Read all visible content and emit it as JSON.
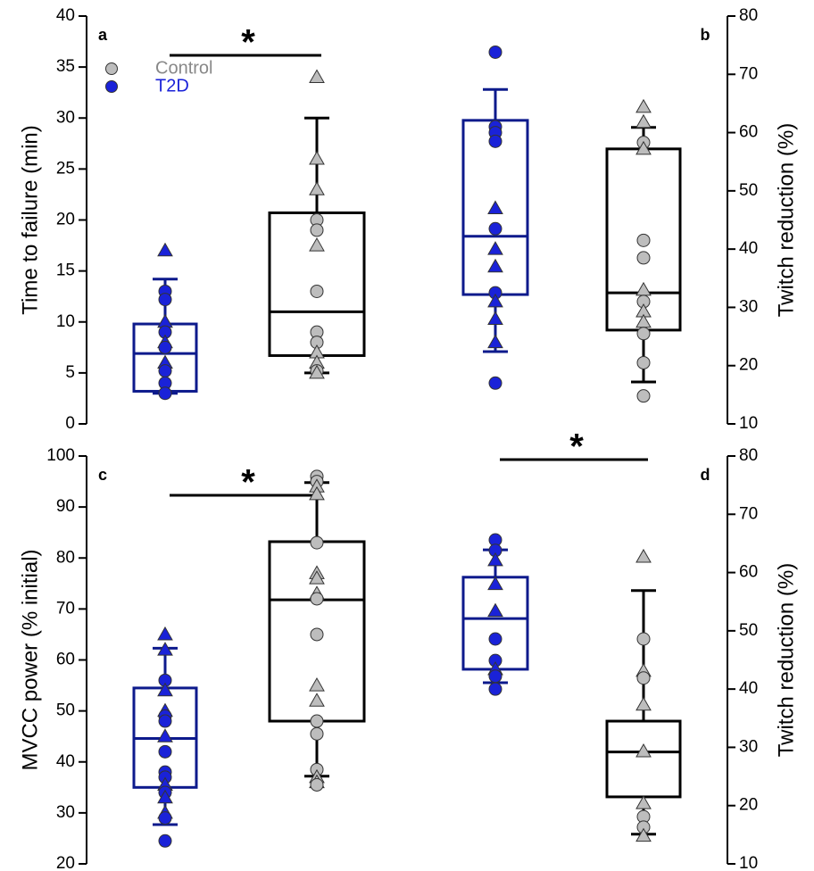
{
  "chart_data": [
    {
      "type": "box",
      "label": "a",
      "axis_side": "left",
      "ylabel": "Time to failure (min)",
      "ylim": [
        0,
        40
      ],
      "yticks": [
        0,
        5,
        10,
        15,
        20,
        25,
        30,
        35,
        40
      ],
      "significance": "*",
      "legend": true,
      "groups": [
        {
          "name": "T2D",
          "color": "#1a22d8",
          "box_color": "#0d1a8c",
          "whisker_low": 3.0,
          "q1": 3.2,
          "median": 6.9,
          "q3": 9.8,
          "whisker_high": 14.2,
          "points": [
            17,
            13,
            12.2,
            10,
            9,
            8,
            7.5,
            6,
            5.2,
            4,
            3
          ],
          "markers": [
            "triangle",
            "circle",
            "circle",
            "triangle",
            "circle",
            "triangle",
            "circle",
            "triangle",
            "circle",
            "circle",
            "circle"
          ]
        },
        {
          "name": "Control",
          "color": "#bdbdbd",
          "box_color": "#000000",
          "whisker_low": 5.0,
          "q1": 6.7,
          "median": 11,
          "q3": 20.7,
          "whisker_high": 30,
          "points": [
            34,
            26,
            23,
            20,
            19,
            17.5,
            13,
            9,
            8,
            7,
            6,
            5.2,
            5
          ],
          "markers": [
            "triangle",
            "triangle",
            "triangle",
            "circle",
            "circle",
            "triangle",
            "circle",
            "circle",
            "circle",
            "triangle",
            "triangle",
            "circle",
            "triangle"
          ]
        }
      ]
    },
    {
      "type": "box",
      "label": "b",
      "axis_side": "right",
      "ylabel": "Twitch reduction (%)",
      "ylim": [
        10,
        80
      ],
      "yticks": [
        10,
        20,
        30,
        40,
        50,
        60,
        70,
        80
      ],
      "groups": [
        {
          "name": "T2D",
          "color": "#1a22d8",
          "box_color": "#0d1a8c",
          "whisker_low": 22.4,
          "q1": 32.2,
          "median": 42.2,
          "q3": 62.1,
          "whisker_high": 67.4,
          "points": [
            73.8,
            61,
            60,
            58.5,
            47,
            43.5,
            40,
            37,
            32.5,
            31,
            28,
            24,
            17
          ],
          "markers": [
            "circle",
            "circle",
            "circle",
            "circle",
            "triangle",
            "circle",
            "triangle",
            "triangle",
            "circle",
            "triangle",
            "triangle",
            "triangle",
            "circle"
          ]
        },
        {
          "name": "Control",
          "color": "#bdbdbd",
          "box_color": "#000000",
          "whisker_low": 17.2,
          "q1": 26.1,
          "median": 32.5,
          "q3": 57.2,
          "whisker_high": 60.9,
          "points": [
            64.4,
            61.8,
            58.3,
            57.2,
            41.5,
            38.5,
            33,
            31,
            29.3,
            27.5,
            25.5,
            20.5,
            14.8
          ],
          "markers": [
            "triangle",
            "triangle",
            "circle",
            "triangle",
            "circle",
            "circle",
            "triangle",
            "circle",
            "triangle",
            "triangle",
            "circle",
            "circle",
            "circle"
          ]
        }
      ]
    },
    {
      "type": "box",
      "label": "c",
      "axis_side": "left",
      "ylabel": "MVCC power (% initial)",
      "ylim": [
        20,
        100
      ],
      "yticks": [
        20,
        30,
        40,
        50,
        60,
        70,
        80,
        90,
        100
      ],
      "significance": "*",
      "groups": [
        {
          "name": "T2D",
          "color": "#1a22d8",
          "box_color": "#0d1a8c",
          "whisker_low": 27.7,
          "q1": 35,
          "median": 44.6,
          "q3": 54.5,
          "whisker_high": 62.3,
          "points": [
            65,
            62,
            56,
            54,
            50,
            49,
            48,
            45,
            42,
            38,
            37,
            35.5,
            34,
            33,
            30,
            29,
            24.5
          ],
          "markers": [
            "triangle",
            "triangle",
            "circle",
            "triangle",
            "triangle",
            "circle",
            "circle",
            "triangle",
            "circle",
            "circle",
            "circle",
            "triangle",
            "circle",
            "triangle",
            "triangle",
            "circle",
            "circle"
          ]
        },
        {
          "name": "Control",
          "color": "#bdbdbd",
          "box_color": "#000000",
          "whisker_low": 37.2,
          "q1": 48,
          "median": 71.8,
          "q3": 83.2,
          "whisker_high": 94.8,
          "points": [
            96,
            95,
            94,
            92.5,
            83,
            77,
            76,
            73,
            72,
            65,
            55,
            52,
            48,
            45.5,
            38.5,
            37,
            36,
            35.5
          ],
          "markers": [
            "circle",
            "circle",
            "triangle",
            "triangle",
            "circle",
            "triangle",
            "triangle",
            "triangle",
            "circle",
            "circle",
            "triangle",
            "triangle",
            "circle",
            "circle",
            "circle",
            "triangle",
            "triangle",
            "circle"
          ]
        }
      ]
    },
    {
      "type": "box",
      "label": "d",
      "axis_side": "right",
      "ylabel": "Twitch reduction (%)",
      "ylim": [
        10,
        80
      ],
      "yticks": [
        10,
        20,
        30,
        40,
        50,
        60,
        70,
        80
      ],
      "significance": "*",
      "groups": [
        {
          "name": "T2D",
          "color": "#1a22d8",
          "box_color": "#0d1a8c",
          "whisker_low": 41.1,
          "q1": 43.4,
          "median": 52.1,
          "q3": 59.2,
          "whisker_high": 63.9,
          "points": [
            65.6,
            63.8,
            62.1,
            58,
            53.4,
            48.6,
            44.9,
            43.4,
            42.2,
            40
          ],
          "markers": [
            "circle",
            "circle",
            "triangle",
            "triangle",
            "triangle",
            "circle",
            "circle",
            "triangle",
            "circle",
            "circle"
          ]
        },
        {
          "name": "Control",
          "color": "#bdbdbd",
          "box_color": "#000000",
          "whisker_low": 15.1,
          "q1": 21.5,
          "median": 29.2,
          "q3": 34.5,
          "whisker_high": 56.9,
          "points": [
            62.7,
            48.6,
            43.1,
            41.9,
            37.3,
            29.3,
            20.4,
            18.1,
            16.3,
            14.8
          ],
          "markers": [
            "triangle",
            "circle",
            "triangle",
            "circle",
            "triangle",
            "triangle",
            "triangle",
            "circle",
            "circle",
            "triangle"
          ]
        }
      ]
    }
  ]
}
